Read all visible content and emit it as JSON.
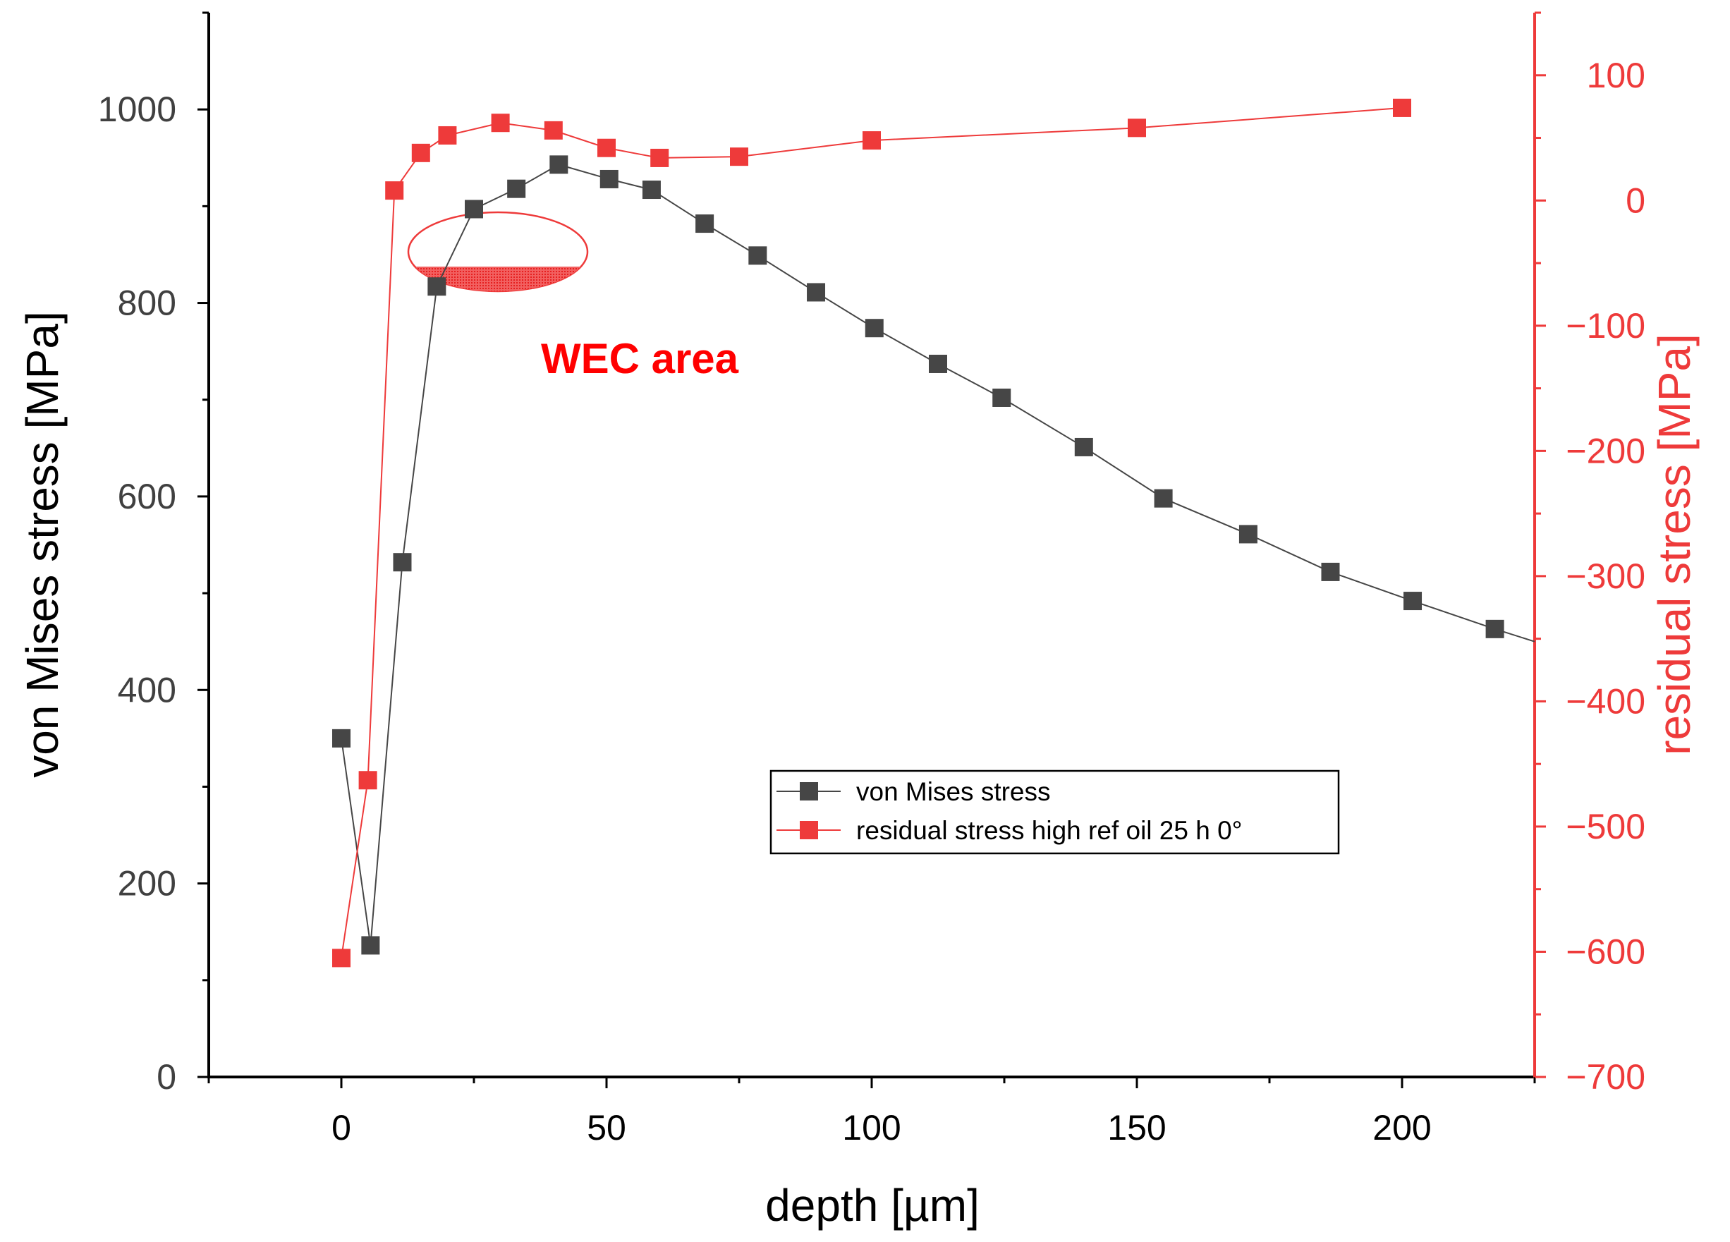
{
  "chart_data": {
    "type": "line",
    "title": "",
    "xlabel": "depth [µm]",
    "ylabel_left": "von Mises stress [MPa]",
    "ylabel_right": "residual stress [MPa]",
    "xlim": [
      -25,
      225
    ],
    "ylim_left": [
      0,
      1100
    ],
    "ylim_right": [
      -700,
      150
    ],
    "x_ticks": [
      0,
      50,
      100,
      150,
      200
    ],
    "y_left_ticks": [
      0,
      200,
      400,
      600,
      800,
      1000
    ],
    "y_right_ticks": [
      -700,
      -600,
      -500,
      -400,
      -300,
      -200,
      -100,
      0,
      100
    ],
    "grid": false,
    "legend_position": "lower-center",
    "series": [
      {
        "name": "von Mises stress",
        "axis": "left",
        "color": "#464646",
        "x": [
          0,
          5.5,
          11.5,
          18,
          25,
          33,
          41,
          50.5,
          58.5,
          68.5,
          78.5,
          89.5,
          100.5,
          112.5,
          124.5,
          140,
          155,
          171,
          186.5,
          202,
          217.5,
          225
        ],
        "y": [
          350,
          136,
          532,
          817,
          897,
          918,
          943,
          928,
          917,
          882,
          849,
          811,
          774,
          737,
          702,
          651,
          598,
          561,
          522,
          492,
          463,
          450
        ],
        "markers": [
          true,
          true,
          true,
          true,
          true,
          true,
          true,
          true,
          true,
          true,
          true,
          true,
          true,
          true,
          true,
          true,
          true,
          true,
          true,
          true,
          true,
          false
        ]
      },
      {
        "name": "residual stress high ref oil 25 h 0°",
        "axis": "right",
        "color": "#ee3a3a",
        "x": [
          0,
          5,
          10,
          15,
          20,
          30,
          40,
          50,
          60,
          75,
          100,
          150,
          200
        ],
        "y": [
          -605,
          -463,
          8,
          38,
          52,
          62,
          56,
          42,
          34,
          35,
          48,
          58,
          74
        ]
      }
    ],
    "annotations": [
      {
        "text": "WEC area",
        "x": 56,
        "y_left": 745,
        "color": "#ff0000"
      }
    ],
    "highlight": {
      "label": "WEC area ellipse",
      "color": "#ee3a3a"
    }
  },
  "colors": {
    "left_axis": "#000000",
    "left_tick_labels": "#404040",
    "right_axis": "#ee3a3a"
  }
}
